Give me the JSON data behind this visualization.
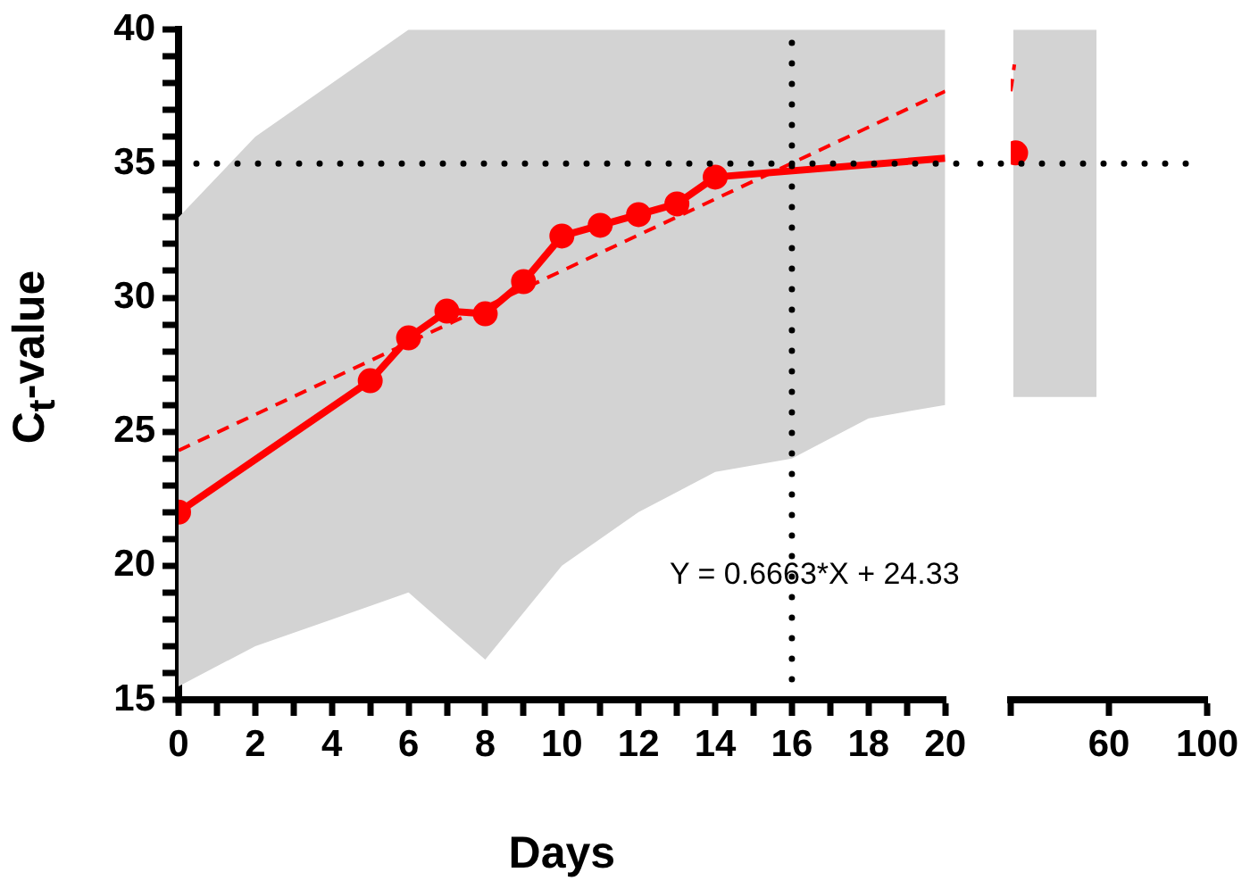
{
  "chart_data": [
    {
      "type": "line",
      "xlabel": "Days",
      "ylabel": "C$_{t}$-value",
      "xlim": [
        0,
        20
      ],
      "ylim": [
        15,
        40
      ],
      "xticks": [
        0,
        {
          "value": 1,
          "label": null
        },
        2,
        {
          "value": 3,
          "label": null
        },
        4,
        {
          "value": 5,
          "label": null
        },
        6,
        {
          "value": 7,
          "label": null
        },
        8,
        {
          "value": 9,
          "label": null
        },
        10,
        {
          "value": 11,
          "label": null
        },
        12,
        {
          "value": 13,
          "label": null
        },
        14,
        {
          "value": 15,
          "label": null
        },
        16,
        {
          "value": 17,
          "label": null
        },
        18,
        {
          "value": 19,
          "label": null
        },
        20
      ],
      "yticks": [
        15,
        {
          "value": 16,
          "label": null
        },
        {
          "value": 17,
          "label": null
        },
        {
          "value": 18,
          "label": null
        },
        {
          "value": 19,
          "label": null
        },
        20,
        {
          "value": 21,
          "label": null
        },
        {
          "value": 22,
          "label": null
        },
        {
          "value": 23,
          "label": null
        },
        {
          "value": 24,
          "label": null
        },
        25,
        {
          "value": 26,
          "label": null
        },
        {
          "value": 27,
          "label": null
        },
        {
          "value": 28,
          "label": null
        },
        {
          "value": 29,
          "label": null
        },
        30,
        {
          "value": 31,
          "label": null
        },
        {
          "value": 32,
          "label": null
        },
        {
          "value": 33,
          "label": null
        },
        {
          "value": 34,
          "label": null
        },
        35,
        {
          "value": 36,
          "label": null
        },
        {
          "value": 37,
          "label": null
        },
        {
          "value": 38,
          "label": null
        },
        {
          "value": 39,
          "label": null
        },
        40
      ],
      "grid": false,
      "legend": false,
      "series": [
        {
          "color": "#d3d3d3",
          "x": [
            0,
            2,
            4,
            6,
            8,
            10,
            12,
            14,
            16,
            18,
            20
          ],
          "values": [
            null,
            null,
            null,
            null,
            null,
            null,
            null,
            null,
            null,
            null,
            null
          ],
          "lower": [
            15.5,
            17,
            18,
            19,
            16.5,
            20,
            22,
            23.5,
            24,
            25.5,
            26
          ],
          "upper": [
            33,
            36,
            38,
            40,
            40,
            40,
            40,
            40,
            40,
            40,
            40
          ],
          "marker": "none"
        },
        {
          "color": "#ff0000",
          "x": [
            0,
            20
          ],
          "values": [
            24.3,
            37.7
          ],
          "line_style": "dashed",
          "marker": "none"
        },
        {
          "color": "#ff0000",
          "x": [
            0,
            5,
            6,
            7,
            8,
            9,
            10,
            11,
            12,
            13,
            14
          ],
          "values": [
            22.0,
            26.9,
            28.5,
            29.5,
            29.4,
            30.6,
            32.3,
            32.7,
            33.1,
            33.5,
            34.5
          ],
          "line_style": "solid",
          "marker": "circle"
        },
        {
          "color": "#ff0000",
          "x": [
            14,
            20
          ],
          "values": [
            34.5,
            35.2
          ],
          "line_style": "solid",
          "marker": "none"
        }
      ],
      "ref_lines": [
        {
          "axis": "x",
          "value": 16
        },
        {
          "axis": "y",
          "value": 35
        }
      ],
      "annotations": [
        "Y = 0.6663*X + 24.33"
      ]
    },
    {
      "type": "line",
      "xlim": [
        20,
        100
      ],
      "ylim": [
        15,
        40
      ],
      "xticks": [
        {
          "value": 20,
          "label": null
        },
        60,
        100
      ],
      "tick_labels": "x",
      "grid": false,
      "legend": false,
      "series": [
        {
          "color": "#d3d3d3",
          "x": [
            21,
            55
          ],
          "values": [
            null,
            null
          ],
          "lower": [
            26.3,
            26.3
          ],
          "upper": [
            40,
            40
          ],
          "marker": "none"
        },
        {
          "color": "#ff0000",
          "x": [
            20,
            21.5
          ],
          "values": [
            37.7,
            38.7
          ],
          "line_style": "dashed",
          "marker": "none"
        },
        {
          "color": "#ff0000",
          "x": [
            22
          ],
          "values": [
            35.4
          ],
          "line_style": "solid",
          "marker": "circle"
        }
      ],
      "ref_lines": [
        {
          "axis": "y",
          "value": 35
        }
      ]
    }
  ]
}
